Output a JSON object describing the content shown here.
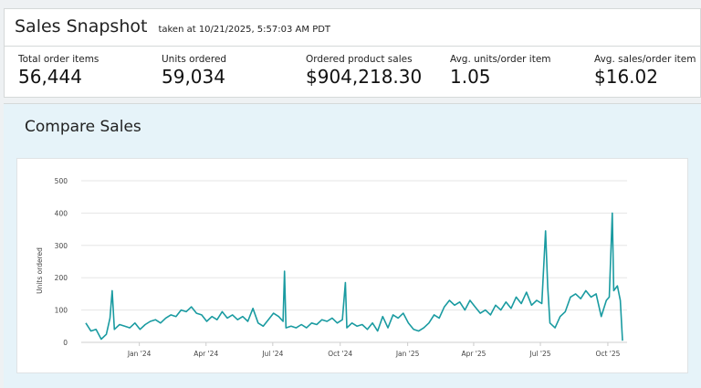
{
  "snapshot": {
    "title": "Sales Snapshot",
    "taken_at": "taken at 10/21/2025, 5:57:03 AM PDT",
    "metrics": [
      {
        "label": "Total order items",
        "value": "56,444"
      },
      {
        "label": "Units ordered",
        "value": "59,034"
      },
      {
        "label": "Ordered product sales",
        "value": "$904,218.30"
      },
      {
        "label": "Avg. units/order item",
        "value": "1.05"
      },
      {
        "label": "Avg. sales/order item",
        "value": "$16.02"
      }
    ]
  },
  "compare": {
    "title": "Compare Sales"
  },
  "chart_data": {
    "type": "line",
    "title": "",
    "xlabel": "",
    "ylabel": "Units ordered",
    "ylim": [
      0,
      500
    ],
    "yticks": [
      0,
      100,
      200,
      300,
      400,
      500
    ],
    "xticks": [
      {
        "date": "2024-01-01",
        "label": "Jan '24"
      },
      {
        "date": "2024-04-01",
        "label": "Apr '24"
      },
      {
        "date": "2024-07-01",
        "label": "Jul '24"
      },
      {
        "date": "2024-10-01",
        "label": "Oct '24"
      },
      {
        "date": "2025-01-01",
        "label": "Jan '25"
      },
      {
        "date": "2025-04-01",
        "label": "Apr '25"
      },
      {
        "date": "2025-07-01",
        "label": "Jul '25"
      },
      {
        "date": "2025-10-01",
        "label": "Oct '25"
      }
    ],
    "grid": true,
    "color": "#1a9ba1",
    "points": [
      [
        "2023-10-20",
        60
      ],
      [
        "2023-10-27",
        35
      ],
      [
        "2023-11-03",
        40
      ],
      [
        "2023-11-10",
        10
      ],
      [
        "2023-11-17",
        25
      ],
      [
        "2023-11-22",
        75
      ],
      [
        "2023-11-25",
        160
      ],
      [
        "2023-11-28",
        40
      ],
      [
        "2023-12-05",
        55
      ],
      [
        "2023-12-12",
        50
      ],
      [
        "2023-12-19",
        45
      ],
      [
        "2023-12-26",
        60
      ],
      [
        "2024-01-02",
        40
      ],
      [
        "2024-01-09",
        55
      ],
      [
        "2024-01-16",
        65
      ],
      [
        "2024-01-23",
        70
      ],
      [
        "2024-01-30",
        60
      ],
      [
        "2024-02-06",
        75
      ],
      [
        "2024-02-13",
        85
      ],
      [
        "2024-02-20",
        80
      ],
      [
        "2024-02-27",
        100
      ],
      [
        "2024-03-05",
        95
      ],
      [
        "2024-03-12",
        110
      ],
      [
        "2024-03-19",
        90
      ],
      [
        "2024-03-26",
        85
      ],
      [
        "2024-04-02",
        65
      ],
      [
        "2024-04-09",
        80
      ],
      [
        "2024-04-16",
        70
      ],
      [
        "2024-04-23",
        95
      ],
      [
        "2024-04-30",
        75
      ],
      [
        "2024-05-07",
        85
      ],
      [
        "2024-05-14",
        70
      ],
      [
        "2024-05-21",
        80
      ],
      [
        "2024-05-28",
        65
      ],
      [
        "2024-06-04",
        105
      ],
      [
        "2024-06-11",
        60
      ],
      [
        "2024-06-18",
        50
      ],
      [
        "2024-06-25",
        70
      ],
      [
        "2024-07-02",
        90
      ],
      [
        "2024-07-09",
        80
      ],
      [
        "2024-07-15",
        65
      ],
      [
        "2024-07-17",
        220
      ],
      [
        "2024-07-19",
        45
      ],
      [
        "2024-07-26",
        50
      ],
      [
        "2024-08-02",
        45
      ],
      [
        "2024-08-09",
        55
      ],
      [
        "2024-08-16",
        45
      ],
      [
        "2024-08-23",
        60
      ],
      [
        "2024-08-30",
        55
      ],
      [
        "2024-09-06",
        70
      ],
      [
        "2024-09-13",
        65
      ],
      [
        "2024-09-20",
        75
      ],
      [
        "2024-09-27",
        60
      ],
      [
        "2024-10-04",
        70
      ],
      [
        "2024-10-08",
        185
      ],
      [
        "2024-10-10",
        45
      ],
      [
        "2024-10-17",
        60
      ],
      [
        "2024-10-24",
        50
      ],
      [
        "2024-10-31",
        55
      ],
      [
        "2024-11-07",
        40
      ],
      [
        "2024-11-14",
        60
      ],
      [
        "2024-11-21",
        35
      ],
      [
        "2024-11-28",
        80
      ],
      [
        "2024-12-05",
        45
      ],
      [
        "2024-12-12",
        85
      ],
      [
        "2024-12-19",
        75
      ],
      [
        "2024-12-26",
        90
      ],
      [
        "2025-01-02",
        60
      ],
      [
        "2025-01-09",
        40
      ],
      [
        "2025-01-16",
        35
      ],
      [
        "2025-01-23",
        45
      ],
      [
        "2025-01-30",
        60
      ],
      [
        "2025-02-06",
        85
      ],
      [
        "2025-02-13",
        75
      ],
      [
        "2025-02-20",
        110
      ],
      [
        "2025-02-27",
        130
      ],
      [
        "2025-03-06",
        115
      ],
      [
        "2025-03-13",
        125
      ],
      [
        "2025-03-20",
        100
      ],
      [
        "2025-03-27",
        130
      ],
      [
        "2025-04-03",
        110
      ],
      [
        "2025-04-10",
        90
      ],
      [
        "2025-04-17",
        100
      ],
      [
        "2025-04-24",
        85
      ],
      [
        "2025-05-01",
        115
      ],
      [
        "2025-05-08",
        100
      ],
      [
        "2025-05-15",
        125
      ],
      [
        "2025-05-22",
        105
      ],
      [
        "2025-05-29",
        140
      ],
      [
        "2025-06-05",
        120
      ],
      [
        "2025-06-12",
        155
      ],
      [
        "2025-06-19",
        115
      ],
      [
        "2025-06-26",
        130
      ],
      [
        "2025-07-03",
        120
      ],
      [
        "2025-07-08",
        345
      ],
      [
        "2025-07-11",
        170
      ],
      [
        "2025-07-14",
        60
      ],
      [
        "2025-07-21",
        45
      ],
      [
        "2025-07-28",
        80
      ],
      [
        "2025-08-04",
        95
      ],
      [
        "2025-08-11",
        140
      ],
      [
        "2025-08-18",
        150
      ],
      [
        "2025-08-25",
        135
      ],
      [
        "2025-09-01",
        160
      ],
      [
        "2025-09-08",
        140
      ],
      [
        "2025-09-15",
        150
      ],
      [
        "2025-09-22",
        80
      ],
      [
        "2025-09-29",
        130
      ],
      [
        "2025-10-03",
        140
      ],
      [
        "2025-10-07",
        400
      ],
      [
        "2025-10-09",
        160
      ],
      [
        "2025-10-14",
        175
      ],
      [
        "2025-10-18",
        130
      ],
      [
        "2025-10-21",
        5
      ]
    ]
  }
}
